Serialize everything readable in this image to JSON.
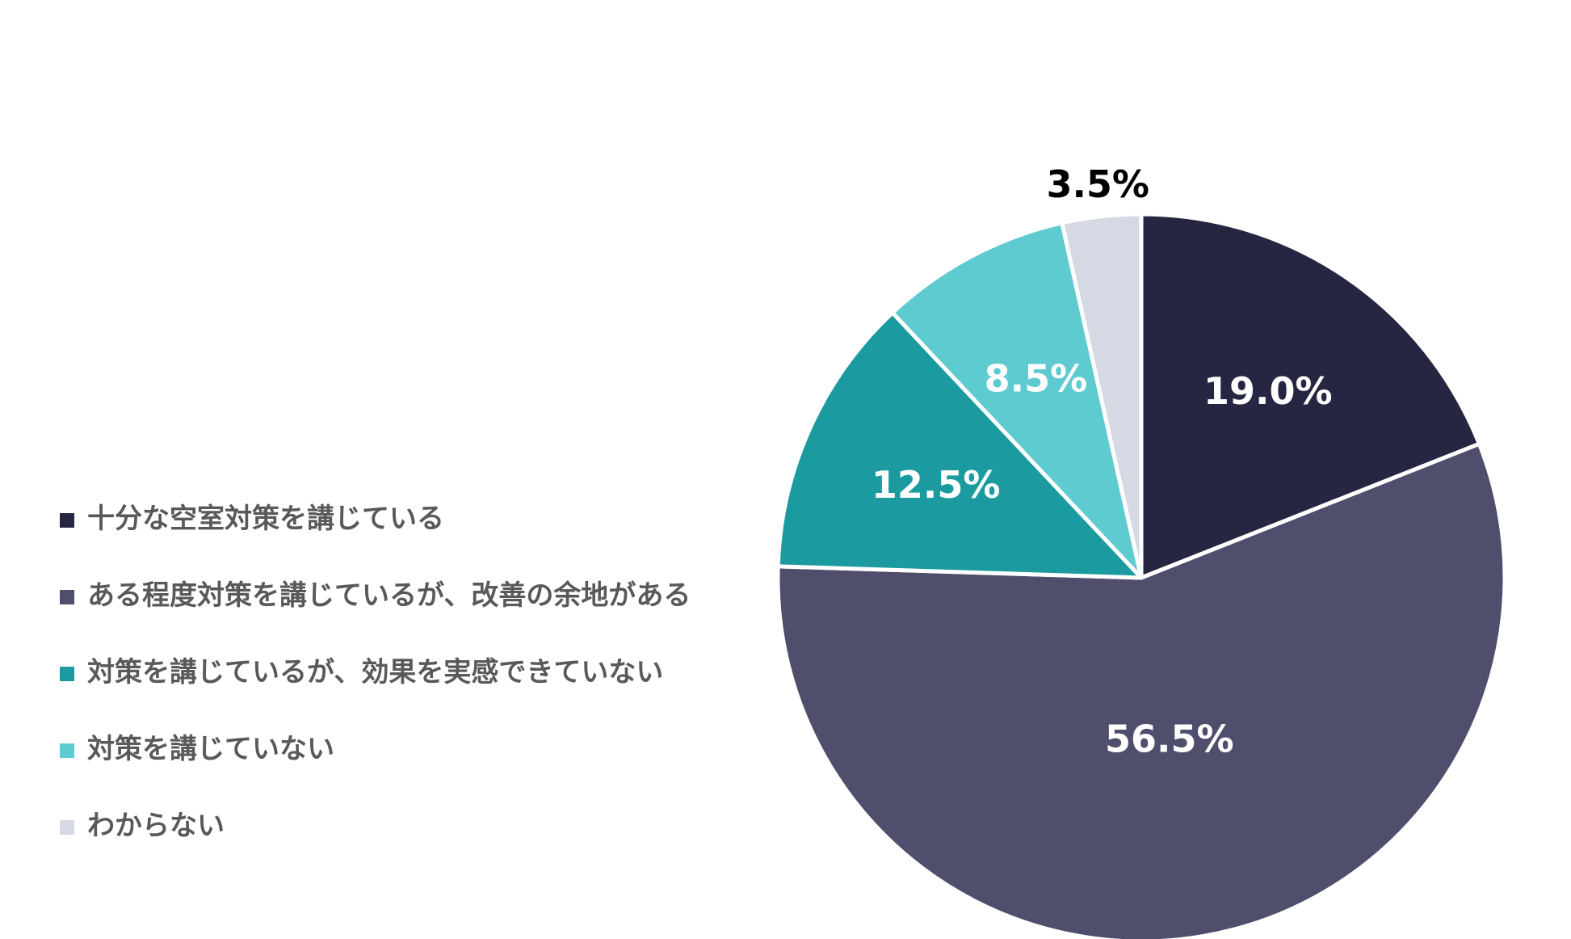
{
  "chart_data": {
    "type": "pie",
    "categories": [
      "十分な空室対策を講じている",
      "ある程度対策を講じているが、改善の余地がある",
      "対策を講じているが、効果を実感できていない",
      "対策を講じていない",
      "わからない"
    ],
    "values": [
      19.0,
      56.5,
      12.5,
      8.5,
      3.5
    ],
    "data_labels": [
      "19.0%",
      "56.5%",
      "12.5%",
      "8.5%",
      "3.5%"
    ],
    "colors": [
      "#262643",
      "#4f4f6d",
      "#1b9aa0",
      "#5ecbd1",
      "#d5d9e4"
    ],
    "label_colors": [
      "#ffffff",
      "#ffffff",
      "#ffffff",
      "#ffffff",
      "#000000"
    ],
    "start_angle": "12 o'clock",
    "direction": "clockwise",
    "legend_position": "left"
  }
}
